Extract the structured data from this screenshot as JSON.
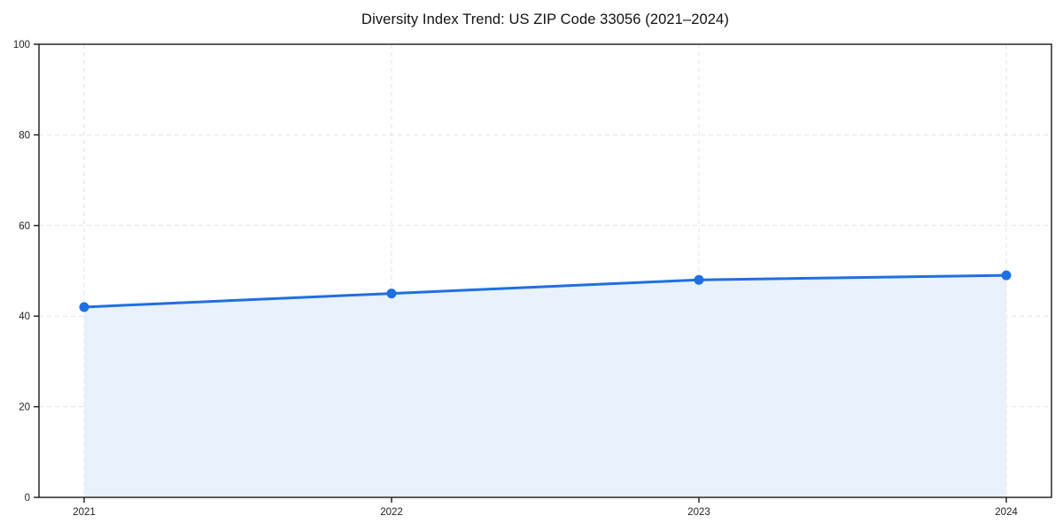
{
  "chart_data": {
    "type": "area",
    "title": "Diversity Index Trend: US ZIP Code 33056 (2021–2024)",
    "categories": [
      "2021",
      "2022",
      "2023",
      "2024"
    ],
    "series": [
      {
        "name": "Diversity Index",
        "values": [
          42,
          45,
          48,
          49
        ]
      }
    ],
    "xlabel": "",
    "ylabel": "",
    "ylim": [
      0,
      100
    ],
    "yticks": [
      0,
      20,
      40,
      60,
      80,
      100
    ],
    "grid": true,
    "grid_style": "dashed",
    "legend": "none",
    "colors": {
      "line": "#1f6fe0",
      "marker": "#1f6fe0",
      "area_fill": "#e9f1fc",
      "grid": "#e2e2e2",
      "spine": "#1a1a1a",
      "tick_label": "#1f1f1f",
      "background": "#ffffff"
    }
  }
}
